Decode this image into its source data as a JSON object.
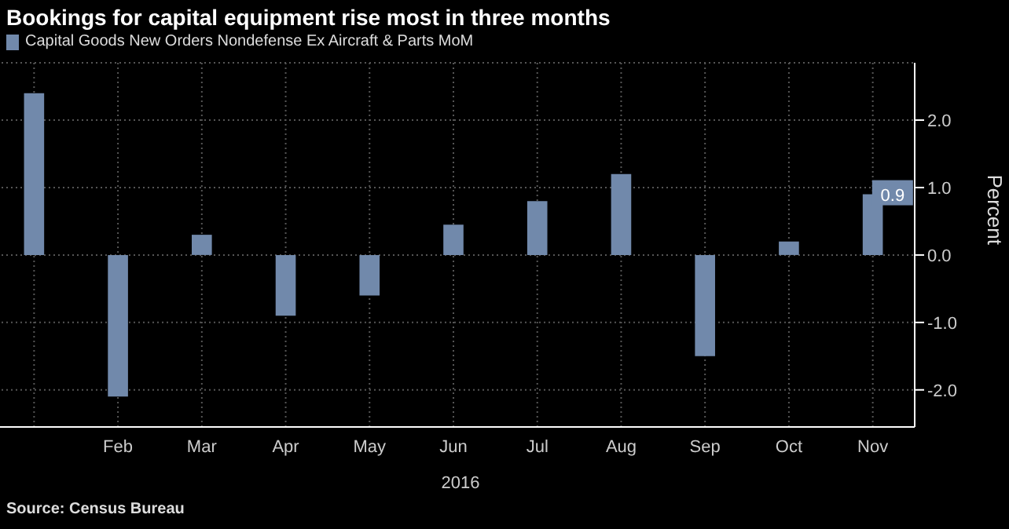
{
  "chart_data": {
    "type": "bar",
    "title": "Bookings for capital equipment rise most in three months",
    "categories": [
      null,
      "Feb",
      "Mar",
      "Apr",
      "May",
      "Jun",
      "Jul",
      "Aug",
      "Sep",
      "Oct",
      "Nov"
    ],
    "series": [
      {
        "name": "Capital Goods New Orders Nondefense Ex Aircraft & Parts MoM",
        "color": "#7189ab",
        "values": [
          2.4,
          -2.1,
          0.3,
          -0.9,
          -0.6,
          0.45,
          0.8,
          1.2,
          -1.5,
          0.2,
          0.9
        ],
        "value_labels": [
          null,
          null,
          null,
          null,
          null,
          null,
          null,
          null,
          null,
          null,
          "0.9"
        ]
      }
    ],
    "ylabel": "Percent",
    "ylim": [
      -2.55,
      2.85
    ],
    "yticks": [
      {
        "value": -2,
        "label": "-2.0"
      },
      {
        "value": -1,
        "label": "-1.0"
      },
      {
        "value": 0,
        "label": "0.0"
      },
      {
        "value": 1,
        "label": "1.0"
      },
      {
        "value": 2,
        "label": "2.0"
      }
    ],
    "grid": true,
    "legend": "top left",
    "annotations": [
      "2016",
      "Source: Census Bureau"
    ]
  }
}
